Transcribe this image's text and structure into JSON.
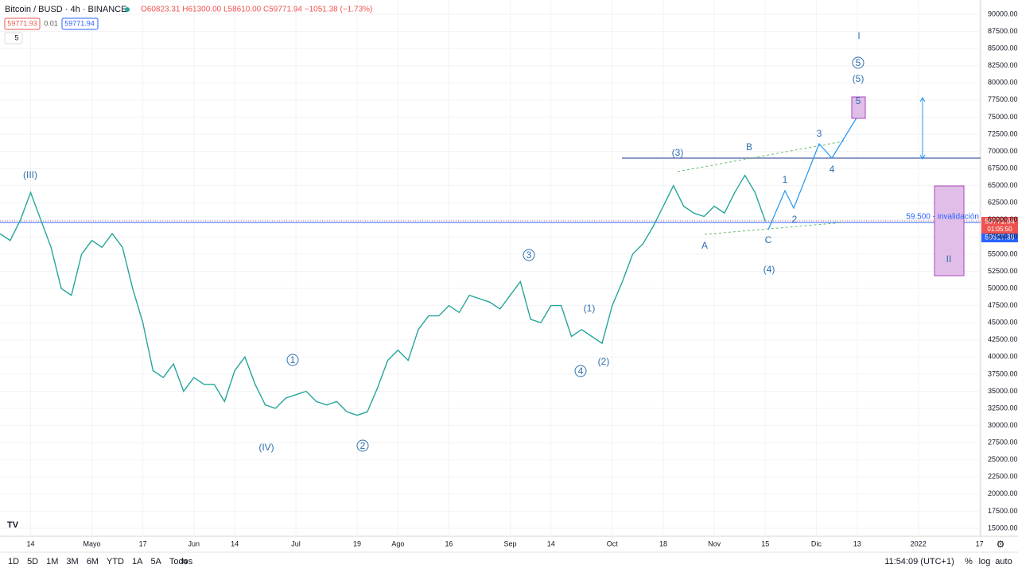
{
  "header": {
    "symbol": "Bitcoin / BUSD · 4h · BINANCE",
    "ohlc": "O60823.31 H61300.00 L58610.00 C59771.94 −1051.38 (−1.73%)",
    "bid": "59771.93",
    "spread": "0.01",
    "ask": "59771.94",
    "indicator": "5"
  },
  "price_labels": {
    "last": "59771.94",
    "countdown": "01:05:50",
    "other": "59617.39"
  },
  "invalidation": "59.500 - invalidación",
  "annotations": [
    "(III)",
    "(IV)",
    "1",
    "2",
    "3",
    "4",
    "(1)",
    "(2)",
    "(3)",
    "B",
    "A",
    "C",
    "(4)",
    "1",
    "2",
    "3",
    "4",
    "5",
    "(5)",
    "5",
    "I",
    "II"
  ],
  "toolbar": {
    "ranges": [
      "1D",
      "5D",
      "1M",
      "3M",
      "6M",
      "YTD",
      "1A",
      "5A",
      "Todos"
    ],
    "clock": "11:54:09 (UTC+1)",
    "percent": "%",
    "log": "log",
    "auto": "auto"
  },
  "chart_data": {
    "type": "line",
    "categories": [
      null,
      null,
      null,
      "14",
      null,
      null,
      null,
      null,
      null,
      "Mayo",
      null,
      null,
      null,
      null,
      "17",
      null,
      null,
      null,
      null,
      "Jun",
      null,
      null,
      null,
      "14",
      null,
      null,
      null,
      null,
      null,
      "Jul",
      null,
      null,
      null,
      null,
      null,
      "19",
      null,
      null,
      null,
      "Ago",
      null,
      null,
      null,
      null,
      "16",
      null,
      null,
      null,
      null,
      null,
      "Sep",
      null,
      null,
      null,
      "14",
      null,
      null,
      null,
      null,
      null,
      "Oct",
      null,
      null,
      null,
      null,
      "18",
      null,
      null,
      null,
      null,
      "Nov",
      null,
      null,
      null,
      null,
      "15",
      null,
      null,
      null,
      null,
      "Dic",
      null,
      null,
      null,
      "13",
      null,
      null,
      null,
      null,
      null,
      "2022",
      null,
      null,
      null,
      null,
      null,
      "17"
    ],
    "series": [
      {
        "name": "Bitcoin / BUSD",
        "color": "#26a69a",
        "values": [
          58000,
          57000,
          60000,
          64000,
          60000,
          56000,
          50000,
          49000,
          55000,
          57000,
          56000,
          58000,
          56000,
          50000,
          45000,
          38000,
          37000,
          39000,
          35000,
          37000,
          36000,
          36000,
          33500,
          38000,
          40000,
          36000,
          33000,
          32500,
          34000,
          34500,
          35000,
          33500,
          33000,
          33500,
          32000,
          31500,
          32000,
          35500,
          39500,
          41000,
          39500,
          44000,
          46000,
          46000,
          47500,
          46500,
          49000,
          48500,
          48000,
          47000,
          49000,
          51000,
          45500,
          45000,
          47500,
          47500,
          43000,
          44000,
          43000,
          42000,
          47500,
          51000,
          55000,
          56500,
          59000,
          62000,
          65000,
          62000,
          61000,
          60500,
          62000,
          61000,
          64000,
          66500,
          64000,
          59800,
          null,
          null,
          null,
          null,
          null,
          null,
          null,
          null,
          null,
          null,
          null,
          null,
          null,
          null,
          null,
          null,
          null,
          null,
          null,
          null,
          null
        ]
      }
    ],
    "ylim": [
      14000,
      92000
    ],
    "yticks": [
      {
        "value": 90000,
        "label": "90000.00"
      },
      {
        "value": 87500,
        "label": "87500.00"
      },
      {
        "value": 85000,
        "label": "85000.00"
      },
      {
        "value": 82500,
        "label": "82500.00"
      },
      {
        "value": 80000,
        "label": "80000.00"
      },
      {
        "value": 77500,
        "label": "77500.00"
      },
      {
        "value": 75000,
        "label": "75000.00"
      },
      {
        "value": 72500,
        "label": "72500.00"
      },
      {
        "value": 70000,
        "label": "70000.00"
      },
      {
        "value": 67500,
        "label": "67500.00"
      },
      {
        "value": 65000,
        "label": "65000.00"
      },
      {
        "value": 62500,
        "label": "62500.00"
      },
      {
        "value": 60000,
        "label": "60000.00"
      },
      {
        "value": 57500,
        "label": "57500.00"
      },
      {
        "value": 55000,
        "label": "55000.00"
      },
      {
        "value": 52500,
        "label": "52500.00"
      },
      {
        "value": 50000,
        "label": "50000.00"
      },
      {
        "value": 47500,
        "label": "47500.00"
      },
      {
        "value": 45000,
        "label": "45000.00"
      },
      {
        "value": 42500,
        "label": "42500.00"
      },
      {
        "value": 40000,
        "label": "40000.00"
      },
      {
        "value": 37500,
        "label": "37500.00"
      },
      {
        "value": 35000,
        "label": "35000.00"
      },
      {
        "value": 32500,
        "label": "32500.00"
      },
      {
        "value": 30000,
        "label": "30000.00"
      },
      {
        "value": 27500,
        "label": "27500.00"
      },
      {
        "value": 25000,
        "label": "25000.00"
      },
      {
        "value": 22500,
        "label": "22500.00"
      },
      {
        "value": 20000,
        "label": "20000.00"
      },
      {
        "value": 17500,
        "label": "17500.00"
      },
      {
        "value": 15000,
        "label": "15000.00"
      }
    ],
    "grid": true
  }
}
